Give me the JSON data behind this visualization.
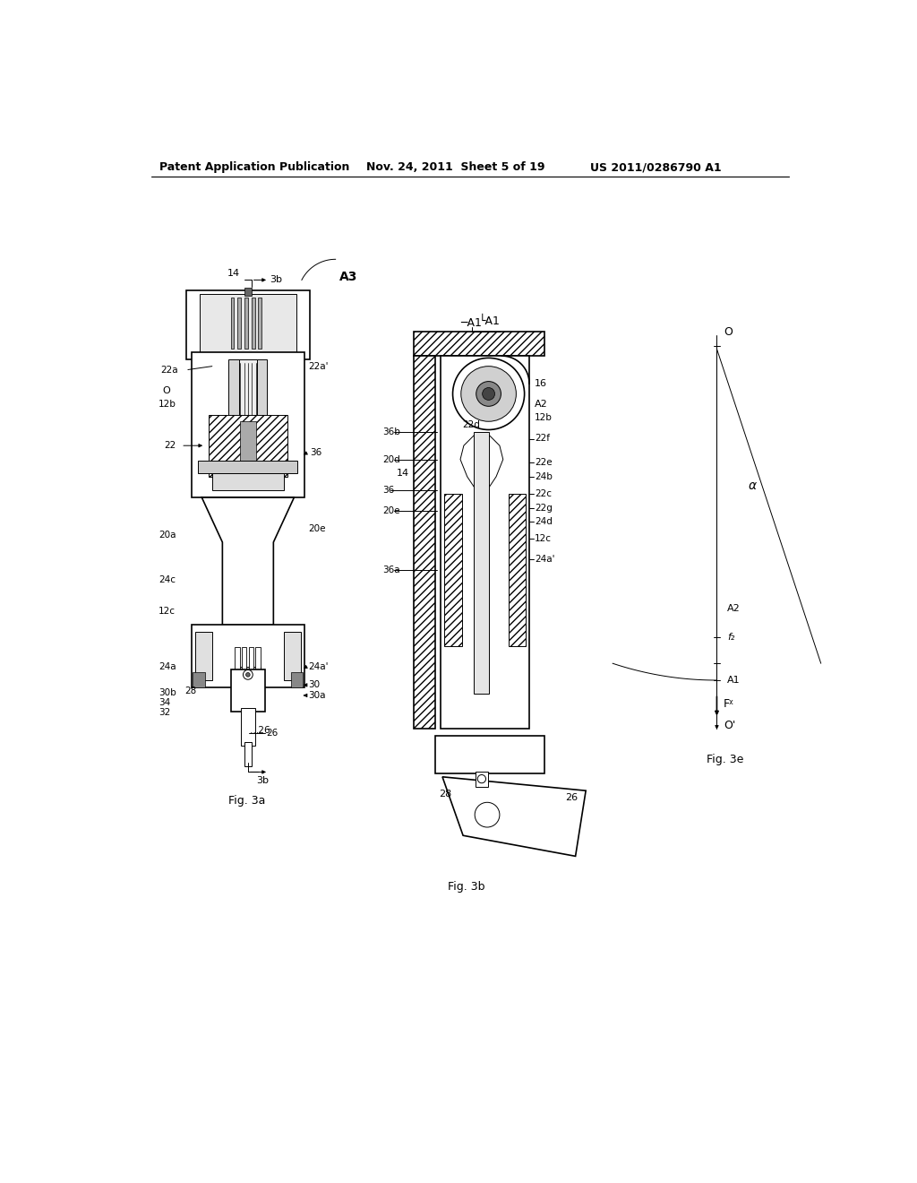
{
  "bg_color": "#ffffff",
  "header_left": "Patent Application Publication",
  "header_mid": "Nov. 24, 2011  Sheet 5 of 19",
  "header_right": "US 2011/0286790 A1",
  "fig3a_caption": "Fig. 3a",
  "fig3b_caption": "Fig. 3b",
  "fig3e_caption": "Fig. 3e",
  "lw_thin": 0.7,
  "lw_med": 1.2,
  "lw_thick": 2.0
}
